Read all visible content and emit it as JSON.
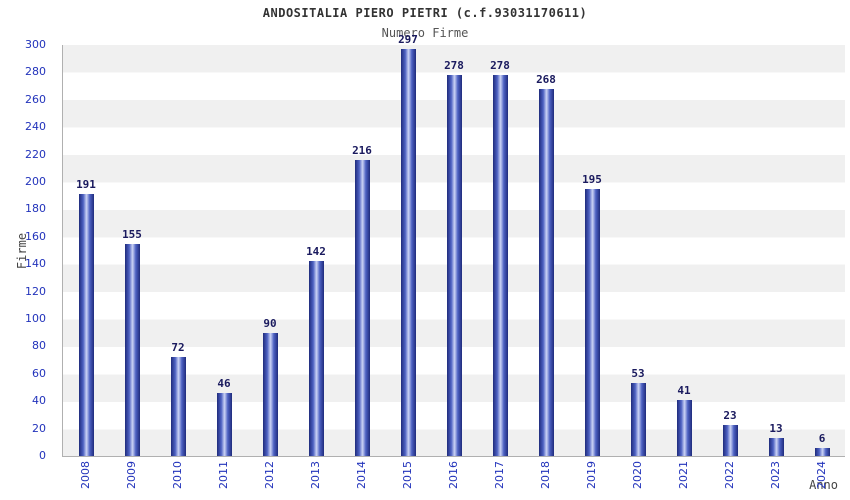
{
  "chart_data": {
    "type": "bar",
    "title": "ANDOSITALIA PIERO PIETRI (c.f.93031170611)",
    "subtitle": "Numero Firme",
    "xlabel": "Anno",
    "ylabel": "Firme",
    "categories": [
      "2008",
      "2009",
      "2010",
      "2011",
      "2012",
      "2013",
      "2014",
      "2015",
      "2016",
      "2017",
      "2018",
      "2019",
      "2020",
      "2021",
      "2022",
      "2023",
      "2024"
    ],
    "values": [
      191,
      155,
      72,
      46,
      90,
      142,
      216,
      297,
      278,
      278,
      268,
      195,
      53,
      41,
      23,
      13,
      6
    ],
    "ylim": [
      0,
      300
    ],
    "ytick_step": 20,
    "grid": "alternating-horizontal-bands",
    "legend": "none",
    "colors": {
      "bar_edge": "#1f2b7c",
      "bar_center": "#ccd4f5",
      "tick_label": "#2233bb",
      "value_label": "#1a1a5e",
      "band": "#f0f0f0",
      "axis": "#b0b0b0",
      "title": "#333333",
      "subtitle": "#555555"
    }
  }
}
